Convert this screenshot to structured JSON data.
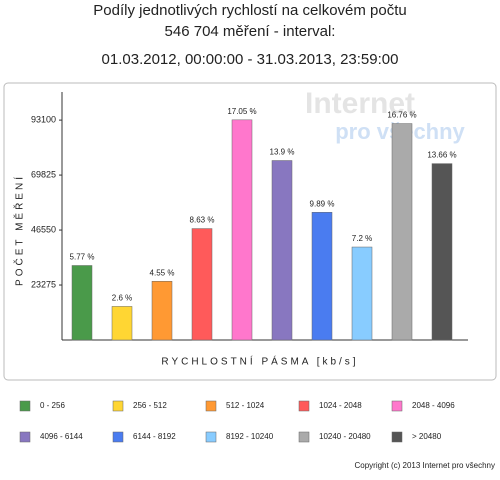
{
  "chart_data": {
    "type": "bar",
    "title_lines": [
      "Podíly jednotlivých rychlostí na celkovém počtu",
      "546 704 měření - interval:",
      "01.03.2012, 00:00:00 - 31.03.2013, 23:59:00"
    ],
    "watermark": [
      "Internet",
      "pro všechny"
    ],
    "x_label": "RYCHLOSTNÍ PÁSMA [kb/s]",
    "y_label": "POČET MĚŘENÍ",
    "categories": [
      "0 - 256",
      "256 - 512",
      "512 - 1024",
      "1024 - 2048",
      "2048 - 4096",
      "4096 - 6144",
      "6144 - 8192",
      "8192 - 10240",
      "10240 - 20480",
      "> 20480"
    ],
    "values": [
      31545,
      14214,
      24875,
      47181,
      93213,
      75992,
      54069,
      39363,
      91628,
      74680
    ],
    "value_labels": [
      "5.77 %",
      "2.6 %",
      "4.55 %",
      "8.63 %",
      "17.05 %",
      "13.9 %",
      "9.89 %",
      "7.2 %",
      "16.76 %",
      "13.66 %"
    ],
    "colors": [
      "#4a9a4a",
      "#ffd633",
      "#ff9933",
      "#ff5a5a",
      "#ff77cc",
      "#8877c0",
      "#4a7cf0",
      "#88ccff",
      "#aaaaaa",
      "#555555"
    ],
    "ylim": [
      0,
      105000
    ],
    "yticks": [
      23275,
      46550,
      69825,
      93100
    ],
    "footer": "Copyright (c) 2013 Internet pro všechny"
  }
}
